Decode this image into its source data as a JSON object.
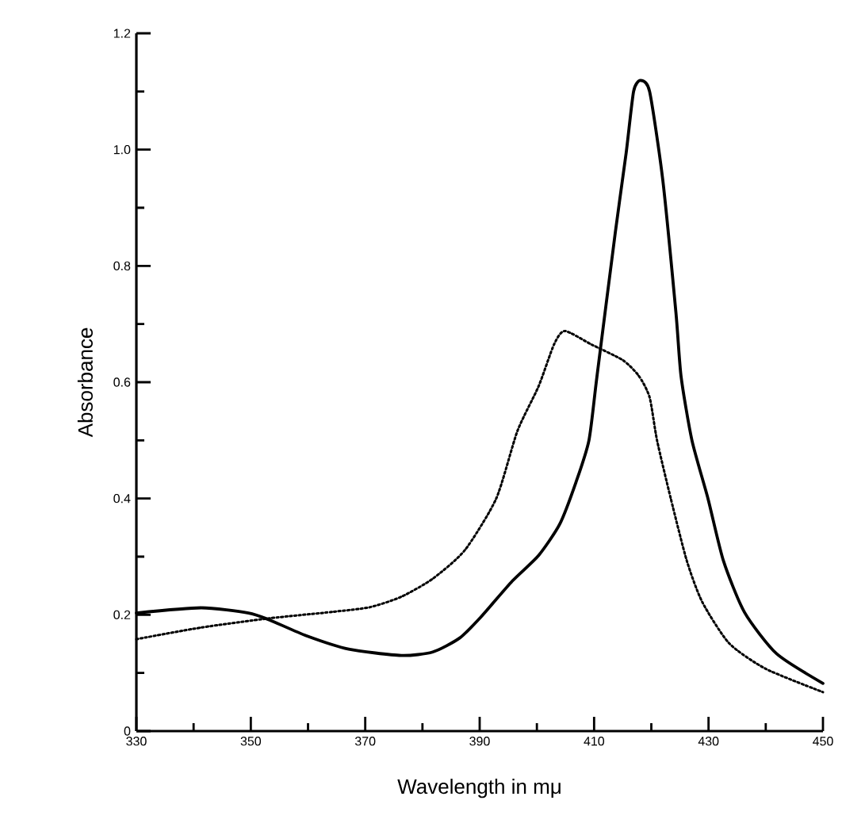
{
  "chart_data": {
    "type": "line",
    "xlabel": "Wavelength in mμ",
    "ylabel": "Absorbance",
    "xlim": [
      330,
      450
    ],
    "ylim": [
      0,
      1.2
    ],
    "xticks": [
      330,
      {
        "value": 340,
        "label": null
      },
      350,
      {
        "value": 360,
        "label": null
      },
      370,
      {
        "value": 380,
        "label": null
      },
      390,
      {
        "value": 400,
        "label": null
      },
      410,
      {
        "value": 420,
        "label": null
      },
      430,
      {
        "value": 440,
        "label": null
      },
      450
    ],
    "yticks": [
      0,
      {
        "value": 0.1,
        "label": null
      },
      0.2,
      {
        "value": 0.3,
        "label": null
      },
      0.4,
      {
        "value": 0.5,
        "label": null
      },
      0.6,
      {
        "value": 0.7,
        "label": null
      },
      0.8,
      {
        "value": 0.9,
        "label": null
      },
      {
        "value": 1.0,
        "label": "1.0"
      },
      {
        "value": 1.1,
        "label": null
      },
      1.2
    ],
    "series": [
      {
        "color": "#000000",
        "line_style": "solid",
        "x": [
          330,
          341.3,
          349.6,
          353.3,
          359.7,
          367.1,
          376.3,
          381.8,
          386.5,
          390.2,
          395.7,
          400.3,
          404,
          406.8,
          409.1,
          410.5,
          413.7,
          415.6,
          416.9,
          418.1,
          419.7,
          422,
          424.3,
          425.2,
          427.1,
          429.9,
          432.6,
          436.3,
          441.9,
          450
        ],
        "values": [
          0.203,
          0.212,
          0.203,
          0.191,
          0.164,
          0.141,
          0.13,
          0.136,
          0.16,
          0.196,
          0.258,
          0.302,
          0.356,
          0.427,
          0.5,
          0.61,
          0.857,
          0.994,
          1.1,
          1.119,
          1.1,
          0.948,
          0.72,
          0.61,
          0.5,
          0.4,
          0.293,
          0.204,
          0.133,
          0.082
        ]
      },
      {
        "color": "#000000",
        "line_style": "dotted",
        "x": [
          330,
          341.3,
          353.3,
          364.3,
          370.8,
          376.3,
          381.8,
          387.4,
          392.9,
          396.6,
          400.3,
          403,
          404.9,
          409.5,
          415,
          417.8,
          419.7,
          421,
          423.4,
          426.2,
          428.9,
          433.6,
          440,
          450
        ],
        "values": [
          0.158,
          0.178,
          0.194,
          0.205,
          0.213,
          0.231,
          0.262,
          0.311,
          0.4,
          0.516,
          0.593,
          0.665,
          0.688,
          0.665,
          0.638,
          0.611,
          0.574,
          0.5,
          0.4,
          0.293,
          0.222,
          0.151,
          0.107,
          0.067
        ]
      }
    ]
  }
}
